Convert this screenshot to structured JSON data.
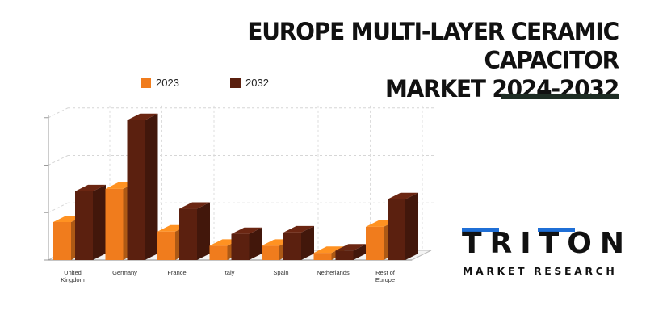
{
  "title_line1": "EUROPE MULTI-LAYER CERAMIC CAPACITOR",
  "title_line2": "MARKET 2024-2032",
  "logo": {
    "main": "TRITON",
    "sub": "MARKET RESEARCH"
  },
  "chart_data": {
    "type": "bar",
    "categories": [
      "United Kingdom",
      "Germany",
      "France",
      "Italy",
      "Spain",
      "Netherlands",
      "Rest of Europe"
    ],
    "category_labels": [
      [
        "United",
        "Kingdom"
      ],
      [
        "Germany"
      ],
      [
        "France"
      ],
      [
        "Italy"
      ],
      [
        "Spain"
      ],
      [
        "Netherlands"
      ],
      [
        "Rest of",
        "Europe"
      ]
    ],
    "series": [
      {
        "name": "2023",
        "values": [
          0.8,
          1.5,
          0.6,
          0.3,
          0.3,
          0.15,
          0.7
        ],
        "color": "#f07c1d"
      },
      {
        "name": "2032",
        "values": [
          1.45,
          2.95,
          1.08,
          0.55,
          0.58,
          0.2,
          1.28
        ],
        "color": "#5b200f"
      }
    ],
    "ylim": [
      0,
      3.2
    ],
    "y_tick_labels": "none",
    "grid": true,
    "legend_position": "top",
    "style": "3d-bar"
  },
  "colors": {
    "accent_rule": "#1e2d24",
    "logo_blue": "#1f6fd6"
  }
}
